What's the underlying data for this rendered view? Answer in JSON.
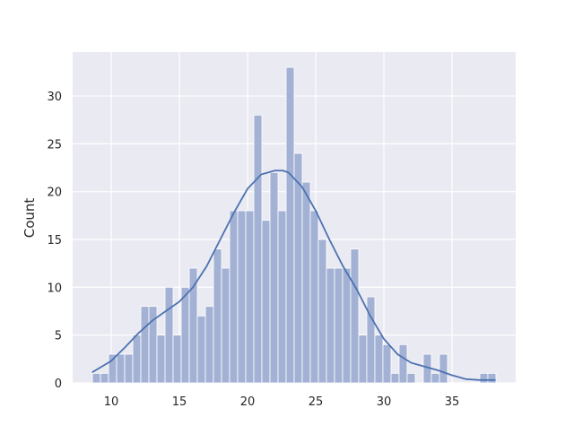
{
  "chart_data": {
    "type": "histogram",
    "ylabel": "Count",
    "bins": [
      8.62,
      9.212,
      9.804,
      10.396,
      10.988,
      11.58,
      12.172,
      12.764,
      13.356,
      13.948,
      14.54,
      15.132,
      15.724,
      16.316,
      16.908,
      17.5,
      18.092,
      18.684,
      19.276,
      19.868,
      20.46,
      21.052,
      21.644,
      22.236,
      22.828,
      23.42,
      24.012,
      24.604,
      25.196,
      25.788,
      26.38,
      26.972,
      27.564,
      28.156,
      28.748,
      29.34,
      29.932,
      30.524,
      31.116,
      31.708,
      32.3,
      32.892,
      33.484,
      34.076,
      34.668,
      35.26,
      35.852,
      36.444,
      37.036,
      37.628,
      38.22
    ],
    "counts": [
      1,
      1,
      3,
      3,
      3,
      5,
      8,
      8,
      5,
      10,
      5,
      10,
      12,
      7,
      8,
      14,
      12,
      18,
      18,
      18,
      28,
      17,
      22,
      18,
      33,
      24,
      21,
      18,
      15,
      12,
      12,
      12,
      14,
      5,
      9,
      5,
      4,
      1,
      4,
      1,
      0,
      3,
      1,
      3,
      0,
      0,
      0,
      0,
      1,
      1
    ],
    "color": "#a3b2d4",
    "kde": {
      "color": "#4c72b0",
      "x": [
        8.6,
        10,
        11,
        12,
        13,
        14,
        15,
        16,
        17,
        18,
        19,
        20,
        21,
        22,
        22.6,
        23,
        24,
        25,
        26,
        27,
        28,
        29,
        30,
        31,
        32,
        33,
        34,
        35,
        36,
        37,
        38.2
      ],
      "values": [
        1.1,
        2.3,
        3.7,
        5.2,
        6.5,
        7.5,
        8.5,
        10,
        12.2,
        15,
        17.8,
        20.3,
        21.8,
        22.2,
        22.2,
        22,
        20.5,
        18,
        15,
        12.2,
        9.8,
        7,
        4.6,
        3,
        2.1,
        1.7,
        1.3,
        0.8,
        0.4,
        0.3,
        0.3
      ]
    },
    "xlim": [
      7.17,
      39.67
    ],
    "ylim": [
      0,
      34.6
    ],
    "xticks": [
      10,
      15,
      20,
      25,
      30,
      35
    ],
    "yticks": [
      0,
      5,
      10,
      15,
      20,
      25,
      30
    ],
    "grid": true
  }
}
